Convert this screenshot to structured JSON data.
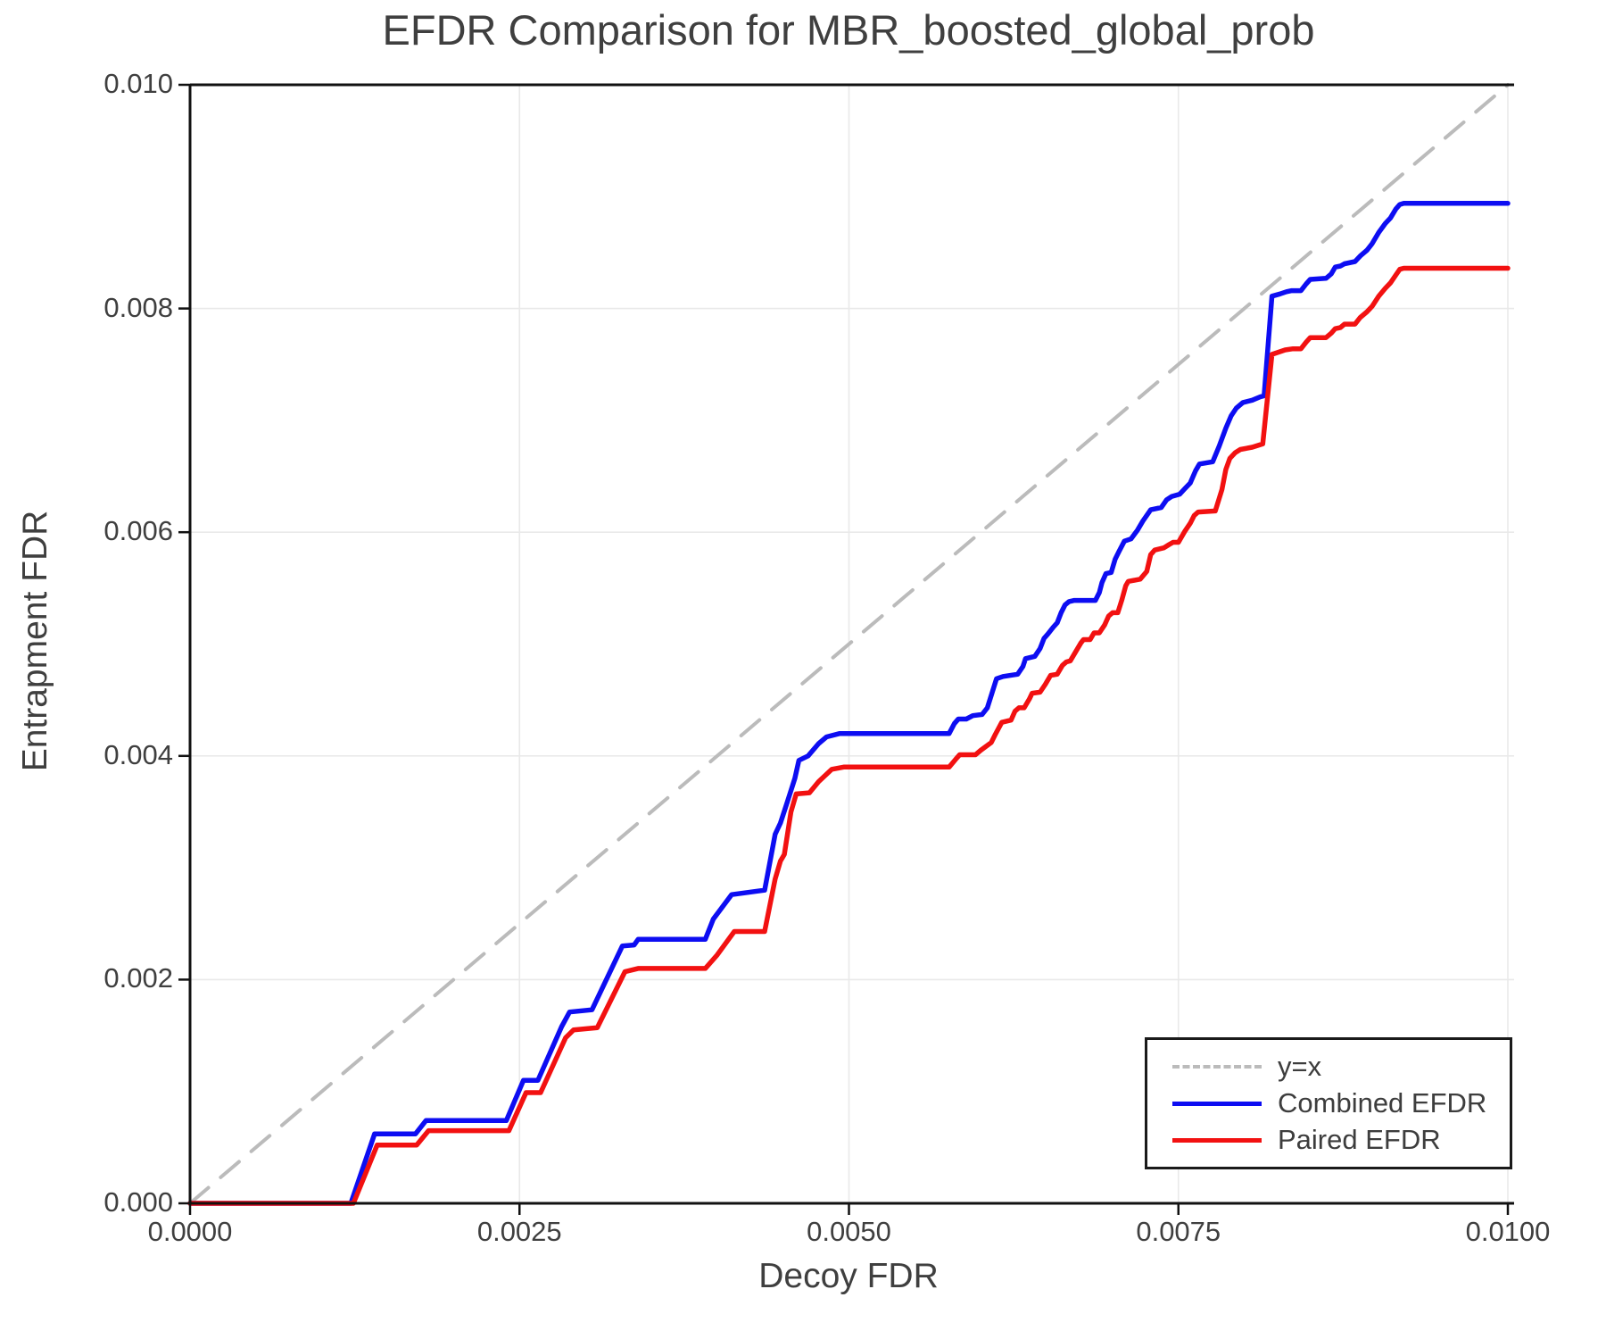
{
  "chart": {
    "title": "EFDR Comparison for MBR_boosted_global_prob",
    "xlabel": "Decoy FDR",
    "ylabel": "Entrapment FDR"
  },
  "colors": {
    "combined": "#0d0df2",
    "paired": "#f21111",
    "identity": "#bbbbbb",
    "grid": "#e9e9e9",
    "spine": "#111111",
    "text": "#3d3d3d"
  },
  "chart_data": {
    "type": "line",
    "title": "EFDR Comparison for MBR_boosted_global_prob",
    "xlabel": "Decoy FDR",
    "ylabel": "Entrapment FDR",
    "xlim": [
      0,
      0.01
    ],
    "ylim": [
      0,
      0.01
    ],
    "grid": true,
    "legend_position": "lower right",
    "x_ticks": {
      "values": [
        0,
        0.0025,
        0.005,
        0.0075,
        0.01
      ],
      "labels": [
        "0.0000",
        "0.0025",
        "0.0050",
        "0.0075",
        "0.0100"
      ]
    },
    "y_ticks": {
      "values": [
        0,
        0.002,
        0.004,
        0.006,
        0.008,
        0.01
      ],
      "labels": [
        "0.000",
        "0.002",
        "0.004",
        "0.006",
        "0.008",
        "0.010"
      ]
    },
    "series": [
      {
        "name": "y=x",
        "key": "identity",
        "style": "dashed",
        "color": "#bbbbbb",
        "points": [
          [
            0,
            0
          ],
          [
            0.01,
            0.01
          ]
        ]
      },
      {
        "name": "Combined EFDR",
        "key": "combined",
        "style": "solid",
        "color": "#0d0df2",
        "points": [
          [
            0,
            0
          ],
          [
            0.00122,
            0
          ],
          [
            0.0014,
            0.00062
          ],
          [
            0.00171,
            0.00062
          ],
          [
            0.00179,
            0.00074
          ],
          [
            0.0024,
            0.00074
          ],
          [
            0.00253,
            0.0011
          ],
          [
            0.00264,
            0.0011
          ],
          [
            0.00282,
            0.00158
          ],
          [
            0.00288,
            0.00171
          ],
          [
            0.00305,
            0.00173
          ],
          [
            0.00328,
            0.0023
          ],
          [
            0.00337,
            0.00231
          ],
          [
            0.0034,
            0.00236
          ],
          [
            0.00391,
            0.00236
          ],
          [
            0.00397,
            0.00254
          ],
          [
            0.00411,
            0.00276
          ],
          [
            0.00436,
            0.0028
          ],
          [
            0.00444,
            0.0033
          ],
          [
            0.00448,
            0.0034
          ],
          [
            0.00453,
            0.00358
          ],
          [
            0.00459,
            0.0038
          ],
          [
            0.00462,
            0.00396
          ],
          [
            0.00469,
            0.004
          ],
          [
            0.00477,
            0.00411
          ],
          [
            0.00483,
            0.00417
          ],
          [
            0.00493,
            0.0042
          ],
          [
            0.00576,
            0.0042
          ],
          [
            0.0058,
            0.00429
          ],
          [
            0.00583,
            0.00433
          ],
          [
            0.00589,
            0.00433
          ],
          [
            0.00594,
            0.00436
          ],
          [
            0.00601,
            0.00437
          ],
          [
            0.00605,
            0.00443
          ],
          [
            0.00612,
            0.00469
          ],
          [
            0.00617,
            0.00471
          ],
          [
            0.00628,
            0.00473
          ],
          [
            0.00632,
            0.0048
          ],
          [
            0.00634,
            0.00487
          ],
          [
            0.00641,
            0.00489
          ],
          [
            0.00645,
            0.00496
          ],
          [
            0.00648,
            0.00505
          ],
          [
            0.00651,
            0.00509
          ],
          [
            0.00655,
            0.00515
          ],
          [
            0.00658,
            0.00519
          ],
          [
            0.00661,
            0.00528
          ],
          [
            0.00664,
            0.00535
          ],
          [
            0.00667,
            0.00538
          ],
          [
            0.00671,
            0.00539
          ],
          [
            0.00687,
            0.00539
          ],
          [
            0.0069,
            0.00546
          ],
          [
            0.00692,
            0.00555
          ],
          [
            0.00695,
            0.00563
          ],
          [
            0.00699,
            0.00564
          ],
          [
            0.00702,
            0.00576
          ],
          [
            0.00705,
            0.00583
          ],
          [
            0.00709,
            0.00592
          ],
          [
            0.00714,
            0.00594
          ],
          [
            0.00719,
            0.00602
          ],
          [
            0.00723,
            0.0061
          ],
          [
            0.00729,
            0.0062
          ],
          [
            0.00737,
            0.00622
          ],
          [
            0.00741,
            0.00629
          ],
          [
            0.00745,
            0.00632
          ],
          [
            0.00751,
            0.00634
          ],
          [
            0.00755,
            0.00639
          ],
          [
            0.00759,
            0.00644
          ],
          [
            0.00763,
            0.00655
          ],
          [
            0.00766,
            0.00661
          ],
          [
            0.00776,
            0.00663
          ],
          [
            0.00781,
            0.00677
          ],
          [
            0.00786,
            0.00693
          ],
          [
            0.0079,
            0.00704
          ],
          [
            0.00794,
            0.00711
          ],
          [
            0.00799,
            0.00716
          ],
          [
            0.00806,
            0.00718
          ],
          [
            0.00812,
            0.00721
          ],
          [
            0.00815,
            0.00722
          ],
          [
            0.00821,
            0.00811
          ],
          [
            0.00827,
            0.00813
          ],
          [
            0.00832,
            0.00815
          ],
          [
            0.00836,
            0.00816
          ],
          [
            0.00843,
            0.00816
          ],
          [
            0.00847,
            0.00822
          ],
          [
            0.0085,
            0.00826
          ],
          [
            0.00862,
            0.00827
          ],
          [
            0.00866,
            0.00831
          ],
          [
            0.00869,
            0.00837
          ],
          [
            0.00873,
            0.00838
          ],
          [
            0.00876,
            0.0084
          ],
          [
            0.00884,
            0.00842
          ],
          [
            0.00888,
            0.00847
          ],
          [
            0.00893,
            0.00852
          ],
          [
            0.00897,
            0.00858
          ],
          [
            0.00902,
            0.00868
          ],
          [
            0.00907,
            0.00876
          ],
          [
            0.00911,
            0.00881
          ],
          [
            0.00915,
            0.00889
          ],
          [
            0.00918,
            0.00893
          ],
          [
            0.00921,
            0.00894
          ],
          [
            0.01,
            0.00894
          ]
        ]
      },
      {
        "name": "Paired EFDR",
        "key": "paired",
        "style": "solid",
        "color": "#f21111",
        "points": [
          [
            0,
            0
          ],
          [
            0.00124,
            0
          ],
          [
            0.00142,
            0.00052
          ],
          [
            0.00172,
            0.00052
          ],
          [
            0.00181,
            0.00065
          ],
          [
            0.00242,
            0.00065
          ],
          [
            0.00255,
            0.00099
          ],
          [
            0.00266,
            0.00099
          ],
          [
            0.00285,
            0.00148
          ],
          [
            0.00291,
            0.00155
          ],
          [
            0.00309,
            0.00157
          ],
          [
            0.0033,
            0.00207
          ],
          [
            0.0034,
            0.0021
          ],
          [
            0.00391,
            0.0021
          ],
          [
            0.004,
            0.00222
          ],
          [
            0.00413,
            0.00243
          ],
          [
            0.00436,
            0.00243
          ],
          [
            0.00444,
            0.0029
          ],
          [
            0.00448,
            0.00306
          ],
          [
            0.00451,
            0.00312
          ],
          [
            0.00456,
            0.0035
          ],
          [
            0.0046,
            0.00366
          ],
          [
            0.0047,
            0.00367
          ],
          [
            0.00477,
            0.00377
          ],
          [
            0.00487,
            0.00388
          ],
          [
            0.00496,
            0.0039
          ],
          [
            0.00576,
            0.0039
          ],
          [
            0.00581,
            0.00397
          ],
          [
            0.00584,
            0.00401
          ],
          [
            0.00596,
            0.00401
          ],
          [
            0.006,
            0.00405
          ],
          [
            0.00608,
            0.00412
          ],
          [
            0.00611,
            0.00419
          ],
          [
            0.00616,
            0.0043
          ],
          [
            0.00623,
            0.00432
          ],
          [
            0.00626,
            0.0044
          ],
          [
            0.00629,
            0.00443
          ],
          [
            0.00633,
            0.00443
          ],
          [
            0.00637,
            0.00451
          ],
          [
            0.00639,
            0.00456
          ],
          [
            0.00645,
            0.00457
          ],
          [
            0.00649,
            0.00464
          ],
          [
            0.00653,
            0.00472
          ],
          [
            0.00658,
            0.00473
          ],
          [
            0.00662,
            0.00481
          ],
          [
            0.00665,
            0.00484
          ],
          [
            0.00668,
            0.00485
          ],
          [
            0.00672,
            0.00493
          ],
          [
            0.00676,
            0.00501
          ],
          [
            0.00678,
            0.00504
          ],
          [
            0.00683,
            0.00504
          ],
          [
            0.00686,
            0.0051
          ],
          [
            0.0069,
            0.0051
          ],
          [
            0.00694,
            0.00517
          ],
          [
            0.00697,
            0.00525
          ],
          [
            0.007,
            0.00528
          ],
          [
            0.00704,
            0.00528
          ],
          [
            0.00707,
            0.00539
          ],
          [
            0.0071,
            0.00552
          ],
          [
            0.00712,
            0.00556
          ],
          [
            0.00721,
            0.00558
          ],
          [
            0.00726,
            0.00565
          ],
          [
            0.00729,
            0.0058
          ],
          [
            0.00732,
            0.00584
          ],
          [
            0.00739,
            0.00586
          ],
          [
            0.00743,
            0.00589
          ],
          [
            0.00746,
            0.00591
          ],
          [
            0.0075,
            0.00591
          ],
          [
            0.00755,
            0.00601
          ],
          [
            0.00759,
            0.00608
          ],
          [
            0.00762,
            0.00615
          ],
          [
            0.00765,
            0.00618
          ],
          [
            0.00778,
            0.00619
          ],
          [
            0.00783,
            0.00638
          ],
          [
            0.00786,
            0.00656
          ],
          [
            0.00789,
            0.00666
          ],
          [
            0.00793,
            0.00671
          ],
          [
            0.00797,
            0.00674
          ],
          [
            0.00806,
            0.00676
          ],
          [
            0.00814,
            0.00679
          ],
          [
            0.00821,
            0.00759
          ],
          [
            0.00826,
            0.00761
          ],
          [
            0.00831,
            0.00763
          ],
          [
            0.00837,
            0.00764
          ],
          [
            0.00843,
            0.00764
          ],
          [
            0.00847,
            0.0077
          ],
          [
            0.0085,
            0.00774
          ],
          [
            0.00862,
            0.00774
          ],
          [
            0.00866,
            0.00778
          ],
          [
            0.00869,
            0.00782
          ],
          [
            0.00873,
            0.00783
          ],
          [
            0.00876,
            0.00786
          ],
          [
            0.00884,
            0.00786
          ],
          [
            0.00888,
            0.00792
          ],
          [
            0.00893,
            0.00797
          ],
          [
            0.00897,
            0.00802
          ],
          [
            0.00902,
            0.00811
          ],
          [
            0.00907,
            0.00818
          ],
          [
            0.00911,
            0.00823
          ],
          [
            0.00915,
            0.0083
          ],
          [
            0.00918,
            0.00835
          ],
          [
            0.00921,
            0.00836
          ],
          [
            0.01,
            0.00836
          ]
        ]
      }
    ]
  },
  "legend": {
    "items": [
      {
        "label": "y=x"
      },
      {
        "label": "Combined EFDR"
      },
      {
        "label": "Paired EFDR"
      }
    ]
  }
}
